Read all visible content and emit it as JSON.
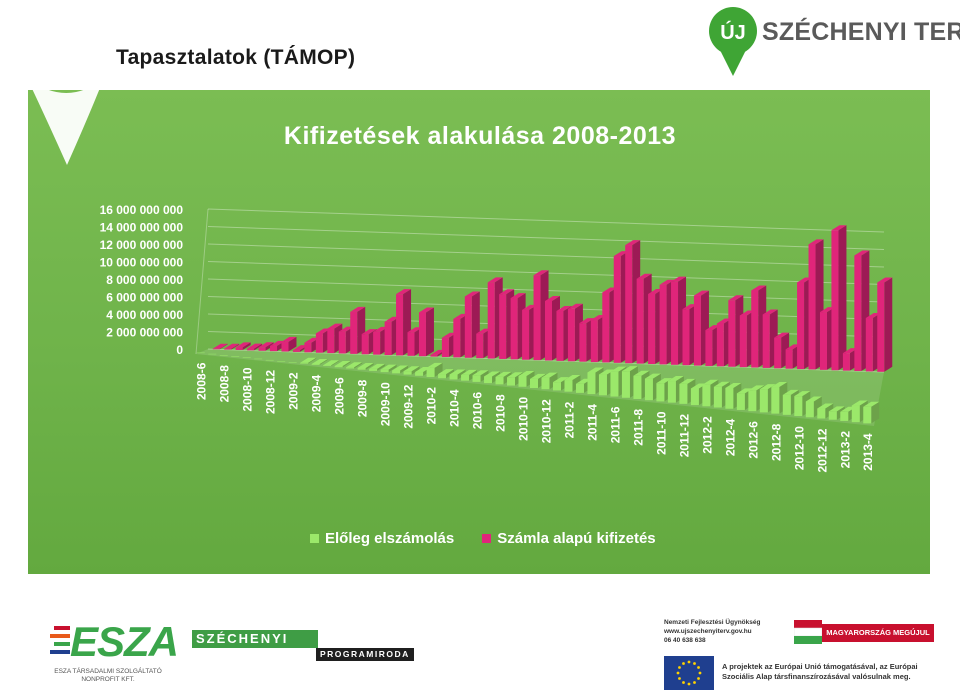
{
  "slide": {
    "title": "Tapasztalatok (TÁMOP)"
  },
  "logo_top": {
    "badge_text": "ÚJ",
    "brand_text": "SZÉCHENYI TERV",
    "color": "#3fa535"
  },
  "colors": {
    "panel_green": "#6fb34a",
    "series1": "#9be86a",
    "series2": "#e0257a"
  },
  "chart_data": {
    "type": "bar",
    "style": "3d-clustered-column",
    "title": "Kifizetések alakulása 2008-2013",
    "ylim": [
      0,
      16000000000
    ],
    "yticks": [
      0,
      2000000000,
      4000000000,
      6000000000,
      8000000000,
      10000000000,
      12000000000,
      14000000000,
      16000000000
    ],
    "ytick_labels": [
      "0",
      "2 000 000 000",
      "4 000 000 000",
      "6 000 000 000",
      "8 000 000 000",
      "10 000 000 000",
      "12 000 000 000",
      "14 000 000 000",
      "16 000 000 000"
    ],
    "grid": true,
    "legend_position": "bottom",
    "categories": [
      "2008-6",
      "2008-7",
      "2008-8",
      "2008-9",
      "2008-10",
      "2008-11",
      "2008-12",
      "2009-1",
      "2009-2",
      "2009-3",
      "2009-4",
      "2009-5",
      "2009-6",
      "2009-7",
      "2009-8",
      "2009-9",
      "2009-10",
      "2009-11",
      "2009-12",
      "2010-1",
      "2010-2",
      "2010-3",
      "2010-4",
      "2010-5",
      "2010-6",
      "2010-7",
      "2010-8",
      "2010-9",
      "2010-10",
      "2010-11",
      "2010-12",
      "2011-1",
      "2011-2",
      "2011-3",
      "2011-4",
      "2011-5",
      "2011-6",
      "2011-7",
      "2011-8",
      "2011-9",
      "2011-10",
      "2011-11",
      "2011-12",
      "2012-1",
      "2012-2",
      "2012-3",
      "2012-4",
      "2012-5",
      "2012-6",
      "2012-7",
      "2012-8",
      "2012-9",
      "2012-10",
      "2012-11",
      "2012-12",
      "2013-1",
      "2013-2",
      "2013-3",
      "2013-4"
    ],
    "tick_labels": [
      "2008-6",
      "2008-8",
      "2008-10",
      "2008-12",
      "2009-2",
      "2009-4",
      "2009-6",
      "2009-8",
      "2009-10",
      "2009-12",
      "2010-2",
      "2010-4",
      "2010-6",
      "2010-8",
      "2010-10",
      "2010-12",
      "2011-2",
      "2011-4",
      "2011-6",
      "2011-8",
      "2011-10",
      "2011-12",
      "2012-2",
      "2012-4",
      "2012-6",
      "2012-8",
      "2012-10",
      "2012-12",
      "2013-2",
      "2013-4"
    ],
    "series": [
      {
        "name": "Előleg elszámolás",
        "values": [
          0,
          0,
          0,
          0,
          0,
          0,
          0,
          0,
          0,
          100000000,
          100000000,
          100000000,
          150000000,
          150000000,
          200000000,
          250000000,
          300000000,
          350000000,
          400000000,
          450000000,
          1100000000,
          500000000,
          600000000,
          700000000,
          800000000,
          800000000,
          900000000,
          1000000000,
          1300000000,
          1100000000,
          1400000000,
          1000000000,
          1400000000,
          1100000000,
          2600000000,
          2500000000,
          3000000000,
          3200000000,
          2800000000,
          2600000000,
          2200000000,
          2600000000,
          2400000000,
          2000000000,
          2600000000,
          2500000000,
          2500000000,
          2000000000,
          2500000000,
          2800000000,
          3200000000,
          2400000000,
          2400000000,
          1900000000,
          1200000000,
          1000000000,
          1100000000,
          2000000000,
          2000000000
        ]
      },
      {
        "name": "Számla alapú kifizetés",
        "values": [
          50000000,
          100000000,
          300000000,
          200000000,
          400000000,
          600000000,
          1100000000,
          200000000,
          1100000000,
          2200000000,
          2800000000,
          2500000000,
          4800000000,
          2300000000,
          2600000000,
          3800000000,
          7000000000,
          2700000000,
          5000000000,
          200000000,
          2200000000,
          4400000000,
          7000000000,
          2800000000,
          8700000000,
          7400000000,
          7000000000,
          5700000000,
          9700000000,
          6800000000,
          5700000000,
          6000000000,
          4400000000,
          4800000000,
          8000000000,
          12200000000,
          13500000000,
          9700000000,
          8000000000,
          9100000000,
          9500000000,
          6400000000,
          8000000000,
          4100000000,
          4900000000,
          7600000000,
          5900000000,
          8800000000,
          6100000000,
          3500000000,
          2200000000,
          9900000000,
          14300000000,
          6600000000,
          16000000000,
          2000000000,
          13200000000,
          6100000000,
          10200000000
        ]
      }
    ]
  },
  "bottom": {
    "esza_word": "ESZA",
    "esza_sub1": "ESZA TÁRSADALMI SZOLGÁLTATÓ",
    "esza_sub2": "NONPROFIT KFT.",
    "szechenyi_top": "SZÉCHENYI",
    "szechenyi_bottom": "PROGRAMIRODA",
    "nfu_line1": "Nemzeti Fejlesztési Ügynökség",
    "nfu_line2": "www.ujszechenyiterv.gov.hu",
    "nfu_line3": "06 40 638 638",
    "mm_text": "MAGYARORSZÁG MEGÚJUL",
    "eu_text": "A projektek az Európai Unió támogatásával, az Európai Szociális Alap társfinanszírozásával valósulnak meg."
  }
}
